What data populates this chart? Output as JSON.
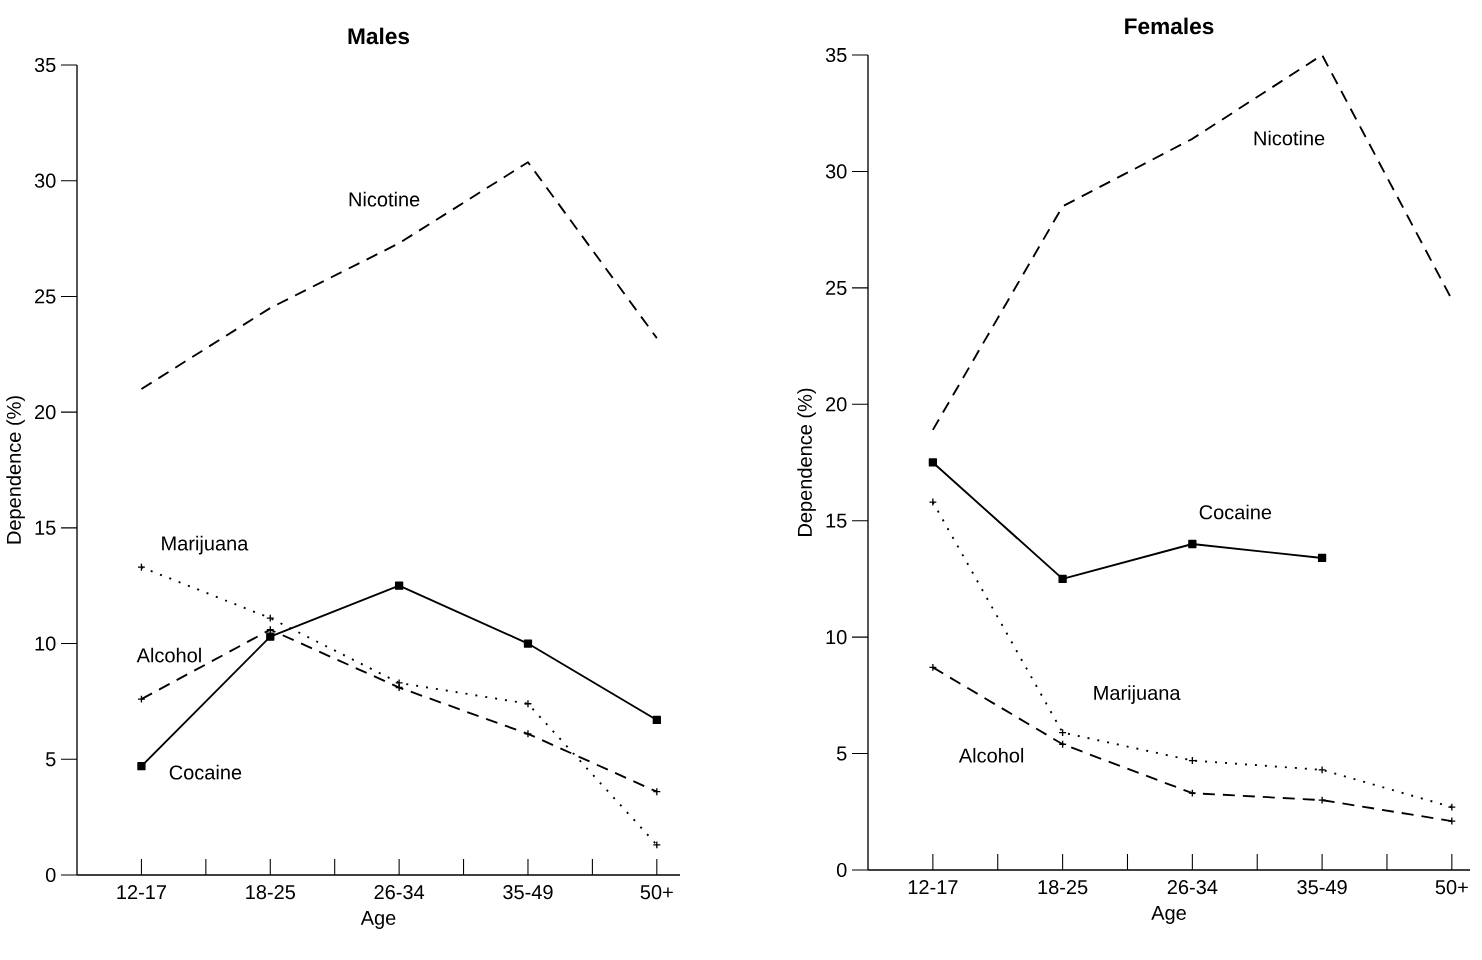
{
  "chart_data": [
    {
      "type": "line",
      "title": "Males",
      "xlabel": "Age",
      "ylabel": "Dependence (%)",
      "categories": [
        "12-17",
        "18-25",
        "26-34",
        "35-49",
        "50+"
      ],
      "ylim": [
        0,
        35
      ],
      "yticks": [
        0,
        5,
        10,
        15,
        20,
        25,
        30,
        35
      ],
      "series": [
        {
          "name": "Nicotine",
          "color": "#000000",
          "marker": "none",
          "line_style": "dashed",
          "values": [
            21.0,
            24.5,
            27.3,
            30.8,
            23.2
          ]
        },
        {
          "name": "Cocaine",
          "color": "#000000",
          "marker": "square",
          "line_style": "solid",
          "values": [
            4.7,
            10.3,
            12.5,
            10.0,
            6.7
          ]
        },
        {
          "name": "Marijuana",
          "color": "#000000",
          "marker": "cross",
          "line_style": "dotted",
          "values": [
            13.3,
            11.1,
            8.3,
            7.4,
            1.3
          ]
        },
        {
          "name": "Alcohol",
          "color": "#000000",
          "marker": "cross",
          "line_style": "dashed",
          "values": [
            7.6,
            10.6,
            8.1,
            6.1,
            3.6
          ]
        }
      ]
    },
    {
      "type": "line",
      "title": "Females",
      "xlabel": "Age",
      "ylabel": "Dependence (%)",
      "categories": [
        "12-17",
        "18-25",
        "26-34",
        "35-49",
        "50+"
      ],
      "ylim": [
        0,
        35
      ],
      "yticks": [
        0,
        5,
        10,
        15,
        20,
        25,
        30,
        35
      ],
      "series": [
        {
          "name": "Nicotine",
          "color": "#000000",
          "marker": "none",
          "line_style": "dashed",
          "values": [
            18.9,
            28.5,
            31.4,
            35.0,
            24.5
          ]
        },
        {
          "name": "Cocaine",
          "color": "#000000",
          "marker": "square",
          "line_style": "solid",
          "values": [
            17.5,
            12.5,
            14.0,
            13.4,
            null
          ]
        },
        {
          "name": "Marijuana",
          "color": "#000000",
          "marker": "cross",
          "line_style": "dotted",
          "values": [
            15.8,
            5.9,
            4.7,
            4.3,
            2.7
          ]
        },
        {
          "name": "Alcohol",
          "color": "#000000",
          "marker": "cross",
          "line_style": "dashed",
          "values": [
            8.7,
            5.4,
            3.3,
            3.0,
            2.1
          ]
        }
      ]
    }
  ]
}
